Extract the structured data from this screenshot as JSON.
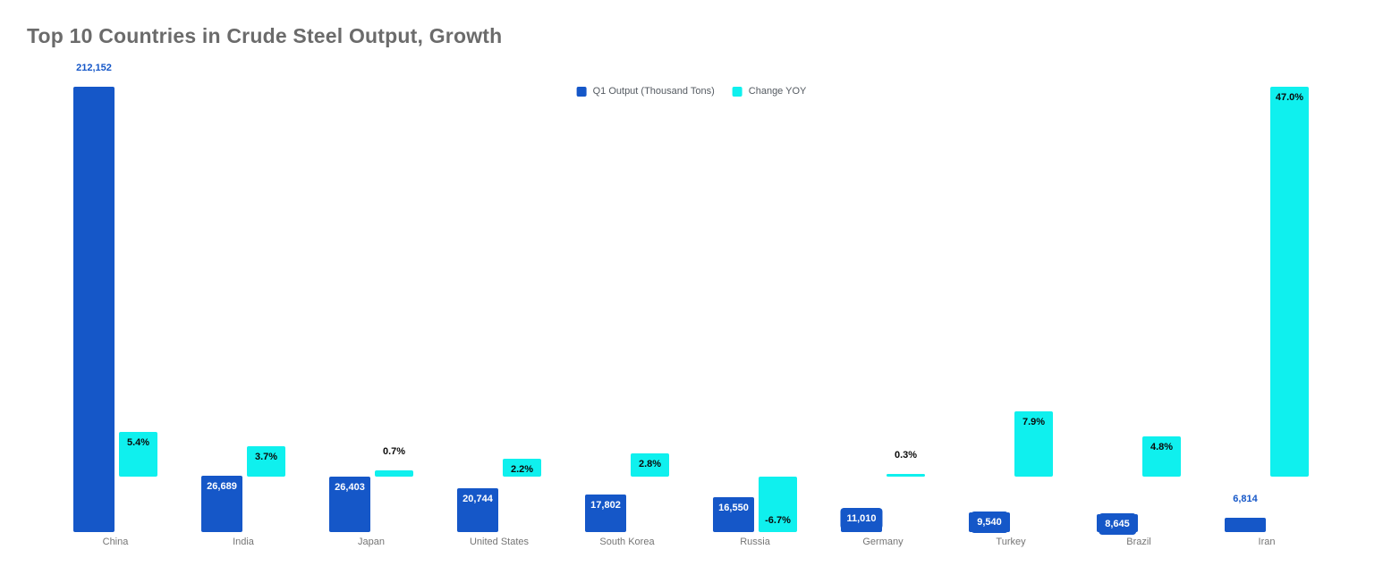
{
  "title": "Top 10 Countries in Crude Steel Output, Growth",
  "legend": {
    "items": [
      {
        "label": "Q1 Output (Thousand Tons)",
        "color": "#1557c8"
      },
      {
        "label": "Change YOY",
        "color": "#0ff0ee"
      }
    ]
  },
  "chart_data": {
    "type": "bar",
    "title": "Top 10 Countries in Crude Steel Output, Growth",
    "categories": [
      "China",
      "India",
      "Japan",
      "United States",
      "South Korea",
      "Russia",
      "Germany",
      "Turkey",
      "Brazil",
      "Iran"
    ],
    "series": [
      {
        "name": "Q1 Output (Thousand Tons)",
        "axis": "primary",
        "color": "#1557c8",
        "values": [
          212152,
          26689,
          26403,
          20744,
          17802,
          16550,
          11010,
          9540,
          8645,
          6814
        ],
        "labels": [
          "212,152",
          "26,689",
          "26,403",
          "20,744",
          "17,802",
          "16,550",
          "11,010",
          "9,540",
          "8,645",
          "6,814"
        ],
        "label_styles": [
          "above",
          "inside",
          "inside",
          "inside",
          "inside",
          "inside",
          "boxed",
          "boxed",
          "boxed",
          "above"
        ]
      },
      {
        "name": "Change YOY",
        "axis": "secondary",
        "color": "#0ff0ee",
        "values": [
          5.4,
          3.7,
          0.7,
          2.2,
          2.8,
          -6.7,
          0.3,
          7.9,
          4.8,
          47.0
        ],
        "labels": [
          "5.4%",
          "3.7%",
          "0.7%",
          "2.2%",
          "2.8%",
          "-6.7%",
          "0.3%",
          "7.9%",
          "4.8%",
          "47.0%"
        ],
        "label_styles": [
          "inside",
          "inside",
          "above",
          "inside",
          "inside",
          "inside-bottom",
          "above",
          "inside",
          "inside",
          "inside"
        ]
      }
    ],
    "primary_axis_range": [
      0,
      212152
    ],
    "secondary_axis_range": [
      -6.7,
      47.0
    ],
    "grid": false,
    "axis_lines": false,
    "legend_position": "top-center"
  }
}
